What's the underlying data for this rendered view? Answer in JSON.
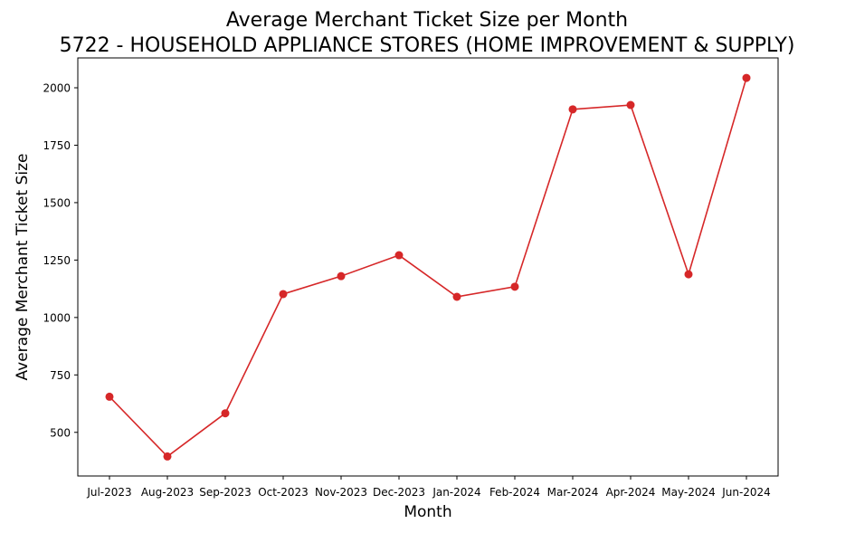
{
  "chart_data": {
    "type": "line",
    "title": "Average Merchant Ticket Size per Month",
    "subtitle": "5722 - HOUSEHOLD APPLIANCE STORES (HOME IMPROVEMENT & SUPPLY)",
    "xlabel": "Month",
    "ylabel": "Average Merchant Ticket Size",
    "categories": [
      "Jul-2023",
      "Aug-2023",
      "Sep-2023",
      "Oct-2023",
      "Nov-2023",
      "Dec-2023",
      "Jan-2024",
      "Feb-2024",
      "Mar-2024",
      "Apr-2024",
      "May-2024",
      "Jun-2024"
    ],
    "values": [
      655,
      395,
      583,
      1102,
      1180,
      1271,
      1090,
      1134,
      1906,
      1925,
      1188,
      2043
    ],
    "yticks": [
      500,
      750,
      1000,
      1250,
      1500,
      1750,
      2000
    ],
    "ylim": [
      310,
      2130
    ],
    "grid": false,
    "legend": "none",
    "line_color": "#d62728"
  }
}
